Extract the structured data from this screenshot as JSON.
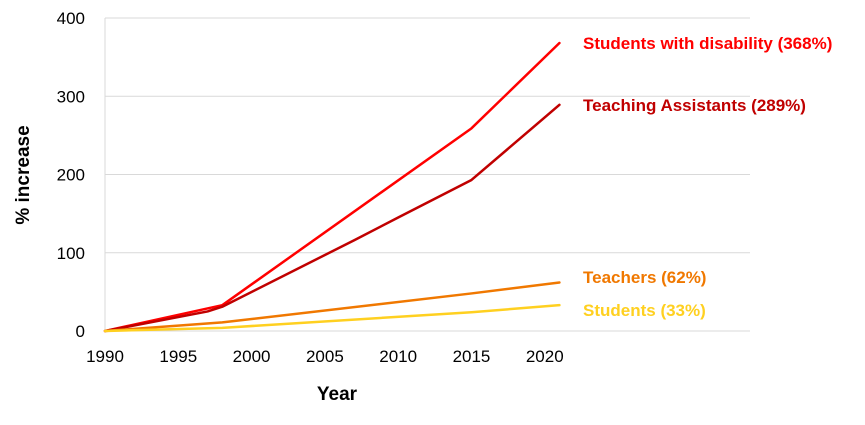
{
  "chart_data": {
    "type": "line",
    "title": "",
    "xlabel": "Year",
    "ylabel": "% increase",
    "xlim": [
      1990,
      2034
    ],
    "ylim": [
      0,
      400
    ],
    "xticks": [
      "1990",
      "1995",
      "2000",
      "2005",
      "2010",
      "2015",
      "2020"
    ],
    "yticks": [
      "0",
      "100",
      "200",
      "300",
      "400"
    ],
    "grid": "horizontal",
    "legend": "direct labels at line ends (right)",
    "series": [
      {
        "name": "Students with disability",
        "label": "Students with disability (368%)",
        "color": "#ff0000",
        "x": [
          1990,
          1998,
          2015,
          2021
        ],
        "y": [
          0,
          33,
          259,
          368
        ]
      },
      {
        "name": "Teaching Assistants",
        "label": "Teaching Assistants (289%)",
        "color": "#c00000",
        "x": [
          1990,
          1997,
          1998,
          2007,
          2010,
          2015,
          2021
        ],
        "y": [
          0,
          25,
          31,
          116,
          145,
          193,
          289
        ]
      },
      {
        "name": "Teachers",
        "label": "Teachers (62%)",
        "color": "#f07800",
        "x": [
          1990,
          1998,
          2015,
          2021
        ],
        "y": [
          0,
          11,
          48,
          62
        ]
      },
      {
        "name": "Students",
        "label": "Students (33%)",
        "color": "#ffd020",
        "x": [
          1990,
          1998,
          2015,
          2021
        ],
        "y": [
          0,
          4,
          24,
          33
        ]
      }
    ]
  }
}
